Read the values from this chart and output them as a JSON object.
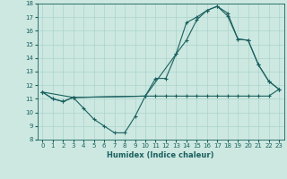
{
  "title": "",
  "xlabel": "Humidex (Indice chaleur)",
  "xlim": [
    -0.5,
    23.5
  ],
  "ylim": [
    8,
    18
  ],
  "yticks": [
    8,
    9,
    10,
    11,
    12,
    13,
    14,
    15,
    16,
    17,
    18
  ],
  "xticks": [
    0,
    1,
    2,
    3,
    4,
    5,
    6,
    7,
    8,
    9,
    10,
    11,
    12,
    13,
    14,
    15,
    16,
    17,
    18,
    19,
    20,
    21,
    22,
    23
  ],
  "background_color": "#cce8e0",
  "grid_color": "#aad4cc",
  "line_color": "#1a6060",
  "line1_x": [
    0,
    1,
    2,
    3,
    4,
    5,
    6,
    7,
    8,
    9,
    10,
    11,
    12,
    13,
    14,
    15,
    16,
    17,
    18,
    19,
    20,
    21,
    22,
    23
  ],
  "line1_y": [
    11.5,
    11.0,
    10.8,
    11.1,
    10.3,
    9.5,
    9.0,
    8.5,
    8.5,
    9.7,
    11.2,
    12.5,
    12.5,
    14.3,
    16.6,
    17.0,
    17.5,
    17.8,
    17.1,
    15.4,
    15.3,
    13.5,
    12.3,
    11.7
  ],
  "line2_x": [
    0,
    1,
    2,
    3,
    10,
    11,
    12,
    13,
    14,
    15,
    16,
    17,
    18,
    19,
    20,
    21,
    22,
    23
  ],
  "line2_y": [
    11.5,
    11.0,
    10.8,
    11.1,
    11.2,
    11.2,
    11.2,
    11.2,
    11.2,
    11.2,
    11.2,
    11.2,
    11.2,
    11.2,
    11.2,
    11.2,
    11.2,
    11.7
  ],
  "line3_x": [
    0,
    3,
    10,
    13,
    14,
    15,
    16,
    17,
    18,
    19,
    20,
    21,
    22,
    23
  ],
  "line3_y": [
    11.5,
    11.1,
    11.2,
    14.3,
    15.3,
    16.8,
    17.5,
    17.8,
    17.3,
    15.4,
    15.3,
    13.5,
    12.3,
    11.7
  ]
}
